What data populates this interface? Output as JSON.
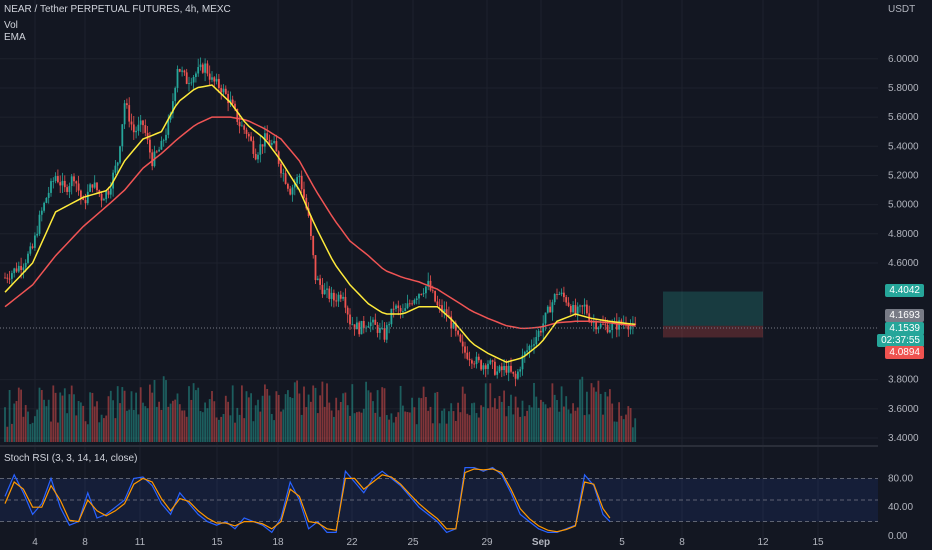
{
  "header": {
    "symbol_line": "NEAR / Tether PERPETUAL FUTURES, 4h, MEXC",
    "vol_label": "Vol",
    "ema_label": "EMA",
    "currency": "USDT"
  },
  "stoch": {
    "label": "Stoch RSI (3, 3, 14, 14, close)",
    "yticks": [
      "80.00",
      "40.00",
      "0.00"
    ]
  },
  "price_tags": {
    "take_profit": "4.4042",
    "gray": "4.1693",
    "last": "4.1539",
    "countdown": "02:37:55",
    "stop_loss": "4.0894"
  },
  "colors": {
    "background": "#131722",
    "up": "#26a69a",
    "down": "#ef5350",
    "ema_fast": "#ffeb3b",
    "ema_slow": "#f05454",
    "stoch_k": "#2962ff",
    "stoch_d": "#ff9800"
  },
  "chart_data": {
    "type": "candlestick",
    "y_axis": {
      "ticks": [
        "6.0000",
        "5.8000",
        "5.6000",
        "5.4000",
        "5.2000",
        "5.0000",
        "4.8000",
        "4.6000",
        "3.8000",
        "3.6000",
        "3.4000"
      ],
      "ylim": [
        3.4,
        6.25
      ]
    },
    "x_axis": {
      "ticks": [
        "4",
        "8",
        "11",
        "15",
        "18",
        "22",
        "25",
        "29",
        "Sep",
        "5",
        "8",
        "12",
        "15"
      ]
    },
    "last_price": 4.1539,
    "position": {
      "take_profit": 4.4042,
      "entry": 4.1693,
      "stop_loss": 4.0894
    },
    "close_path": [
      [
        0,
        4.5
      ],
      [
        4,
        4.55
      ],
      [
        8,
        4.6
      ],
      [
        12,
        4.7
      ],
      [
        15,
        4.9
      ],
      [
        18,
        5.05
      ],
      [
        22,
        5.2
      ],
      [
        26,
        5.1
      ],
      [
        30,
        5.2
      ],
      [
        34,
        5.0
      ],
      [
        38,
        5.15
      ],
      [
        42,
        5.05
      ],
      [
        45,
        5.1
      ],
      [
        49,
        5.3
      ],
      [
        52,
        5.7
      ],
      [
        56,
        5.5
      ],
      [
        60,
        5.55
      ],
      [
        64,
        5.3
      ],
      [
        68,
        5.4
      ],
      [
        72,
        5.6
      ],
      [
        75,
        5.95
      ],
      [
        79,
        5.85
      ],
      [
        83,
        5.9
      ],
      [
        87,
        5.95
      ],
      [
        90,
        5.85
      ],
      [
        94,
        5.8
      ],
      [
        98,
        5.7
      ],
      [
        102,
        5.55
      ],
      [
        105,
        5.5
      ],
      [
        109,
        5.35
      ],
      [
        113,
        5.45
      ],
      [
        117,
        5.4
      ],
      [
        120,
        5.25
      ],
      [
        124,
        5.1
      ],
      [
        128,
        5.2
      ],
      [
        132,
        4.9
      ],
      [
        135,
        4.5
      ],
      [
        139,
        4.4
      ],
      [
        143,
        4.35
      ],
      [
        147,
        4.4
      ],
      [
        150,
        4.2
      ],
      [
        154,
        4.15
      ],
      [
        158,
        4.2
      ],
      [
        162,
        4.15
      ],
      [
        165,
        4.1
      ],
      [
        169,
        4.3
      ],
      [
        173,
        4.25
      ],
      [
        177,
        4.35
      ],
      [
        180,
        4.4
      ],
      [
        184,
        4.45
      ],
      [
        188,
        4.3
      ],
      [
        192,
        4.25
      ],
      [
        195,
        4.15
      ],
      [
        199,
        4.0
      ],
      [
        203,
        3.95
      ],
      [
        207,
        3.9
      ],
      [
        210,
        3.92
      ],
      [
        214,
        3.85
      ],
      [
        218,
        3.88
      ],
      [
        222,
        3.8
      ],
      [
        225,
        3.95
      ],
      [
        229,
        4.05
      ],
      [
        233,
        4.15
      ],
      [
        237,
        4.3
      ],
      [
        240,
        4.4
      ],
      [
        244,
        4.35
      ],
      [
        248,
        4.25
      ],
      [
        252,
        4.3
      ],
      [
        255,
        4.2
      ],
      [
        259,
        4.17
      ],
      [
        263,
        4.16
      ],
      [
        267,
        4.18
      ],
      [
        270,
        4.2
      ],
      [
        273,
        4.15
      ]
    ],
    "ema_fast_path": [
      [
        0,
        4.4
      ],
      [
        12,
        4.6
      ],
      [
        22,
        4.95
      ],
      [
        34,
        5.05
      ],
      [
        45,
        5.1
      ],
      [
        52,
        5.3
      ],
      [
        60,
        5.45
      ],
      [
        68,
        5.5
      ],
      [
        75,
        5.7
      ],
      [
        83,
        5.8
      ],
      [
        90,
        5.82
      ],
      [
        98,
        5.7
      ],
      [
        105,
        5.55
      ],
      [
        113,
        5.45
      ],
      [
        120,
        5.3
      ],
      [
        128,
        5.1
      ],
      [
        135,
        4.85
      ],
      [
        143,
        4.6
      ],
      [
        150,
        4.45
      ],
      [
        158,
        4.32
      ],
      [
        165,
        4.25
      ],
      [
        173,
        4.25
      ],
      [
        180,
        4.3
      ],
      [
        188,
        4.3
      ],
      [
        195,
        4.2
      ],
      [
        203,
        4.05
      ],
      [
        210,
        3.98
      ],
      [
        218,
        3.92
      ],
      [
        225,
        3.95
      ],
      [
        233,
        4.05
      ],
      [
        240,
        4.2
      ],
      [
        248,
        4.25
      ],
      [
        255,
        4.22
      ],
      [
        263,
        4.2
      ],
      [
        273,
        4.18
      ]
    ],
    "ema_slow_path": [
      [
        0,
        4.3
      ],
      [
        12,
        4.45
      ],
      [
        22,
        4.65
      ],
      [
        34,
        4.85
      ],
      [
        45,
        5.0
      ],
      [
        52,
        5.1
      ],
      [
        60,
        5.25
      ],
      [
        68,
        5.35
      ],
      [
        75,
        5.45
      ],
      [
        83,
        5.55
      ],
      [
        90,
        5.6
      ],
      [
        98,
        5.6
      ],
      [
        105,
        5.58
      ],
      [
        113,
        5.52
      ],
      [
        120,
        5.45
      ],
      [
        128,
        5.3
      ],
      [
        135,
        5.1
      ],
      [
        143,
        4.9
      ],
      [
        150,
        4.75
      ],
      [
        158,
        4.65
      ],
      [
        165,
        4.55
      ],
      [
        173,
        4.5
      ],
      [
        180,
        4.47
      ],
      [
        188,
        4.42
      ],
      [
        195,
        4.35
      ],
      [
        203,
        4.27
      ],
      [
        210,
        4.22
      ],
      [
        218,
        4.17
      ],
      [
        225,
        4.15
      ],
      [
        233,
        4.16
      ],
      [
        240,
        4.19
      ],
      [
        248,
        4.2
      ],
      [
        255,
        4.2
      ],
      [
        263,
        4.19
      ],
      [
        273,
        4.17
      ]
    ],
    "stoch_k_path": [
      [
        0,
        55
      ],
      [
        4,
        85
      ],
      [
        8,
        60
      ],
      [
        12,
        30
      ],
      [
        16,
        45
      ],
      [
        20,
        80
      ],
      [
        24,
        40
      ],
      [
        28,
        15
      ],
      [
        32,
        20
      ],
      [
        36,
        60
      ],
      [
        40,
        25
      ],
      [
        44,
        30
      ],
      [
        48,
        40
      ],
      [
        52,
        50
      ],
      [
        56,
        80
      ],
      [
        60,
        82
      ],
      [
        64,
        70
      ],
      [
        68,
        45
      ],
      [
        72,
        30
      ],
      [
        76,
        60
      ],
      [
        80,
        45
      ],
      [
        84,
        30
      ],
      [
        88,
        20
      ],
      [
        92,
        15
      ],
      [
        96,
        20
      ],
      [
        100,
        10
      ],
      [
        104,
        25
      ],
      [
        108,
        20
      ],
      [
        112,
        15
      ],
      [
        116,
        5
      ],
      [
        120,
        25
      ],
      [
        124,
        75
      ],
      [
        128,
        50
      ],
      [
        132,
        10
      ],
      [
        136,
        20
      ],
      [
        140,
        5
      ],
      [
        144,
        5
      ],
      [
        148,
        90
      ],
      [
        152,
        75
      ],
      [
        156,
        60
      ],
      [
        160,
        80
      ],
      [
        164,
        90
      ],
      [
        168,
        80
      ],
      [
        172,
        70
      ],
      [
        176,
        55
      ],
      [
        180,
        40
      ],
      [
        184,
        30
      ],
      [
        188,
        20
      ],
      [
        192,
        5
      ],
      [
        196,
        10
      ],
      [
        200,
        95
      ],
      [
        204,
        95
      ],
      [
        208,
        90
      ],
      [
        212,
        95
      ],
      [
        216,
        85
      ],
      [
        220,
        60
      ],
      [
        224,
        30
      ],
      [
        228,
        20
      ],
      [
        232,
        10
      ],
      [
        236,
        5
      ],
      [
        240,
        5
      ],
      [
        244,
        10
      ],
      [
        248,
        15
      ],
      [
        252,
        85
      ],
      [
        256,
        70
      ],
      [
        260,
        30
      ],
      [
        263,
        20
      ]
    ],
    "stoch_d_path": [
      [
        0,
        45
      ],
      [
        4,
        75
      ],
      [
        8,
        65
      ],
      [
        12,
        40
      ],
      [
        16,
        40
      ],
      [
        20,
        70
      ],
      [
        24,
        50
      ],
      [
        28,
        22
      ],
      [
        32,
        20
      ],
      [
        36,
        50
      ],
      [
        40,
        35
      ],
      [
        44,
        28
      ],
      [
        48,
        35
      ],
      [
        52,
        45
      ],
      [
        56,
        72
      ],
      [
        60,
        80
      ],
      [
        64,
        75
      ],
      [
        68,
        52
      ],
      [
        72,
        35
      ],
      [
        76,
        52
      ],
      [
        80,
        48
      ],
      [
        84,
        35
      ],
      [
        88,
        25
      ],
      [
        92,
        18
      ],
      [
        96,
        18
      ],
      [
        100,
        14
      ],
      [
        104,
        20
      ],
      [
        108,
        20
      ],
      [
        112,
        17
      ],
      [
        116,
        10
      ],
      [
        120,
        20
      ],
      [
        124,
        65
      ],
      [
        128,
        55
      ],
      [
        132,
        20
      ],
      [
        136,
        18
      ],
      [
        140,
        10
      ],
      [
        144,
        8
      ],
      [
        148,
        80
      ],
      [
        152,
        80
      ],
      [
        156,
        65
      ],
      [
        160,
        75
      ],
      [
        164,
        85
      ],
      [
        168,
        82
      ],
      [
        172,
        72
      ],
      [
        176,
        58
      ],
      [
        180,
        45
      ],
      [
        184,
        34
      ],
      [
        188,
        24
      ],
      [
        192,
        10
      ],
      [
        196,
        10
      ],
      [
        200,
        88
      ],
      [
        204,
        93
      ],
      [
        208,
        92
      ],
      [
        212,
        93
      ],
      [
        216,
        88
      ],
      [
        220,
        65
      ],
      [
        224,
        38
      ],
      [
        228,
        24
      ],
      [
        232,
        14
      ],
      [
        236,
        8
      ],
      [
        240,
        6
      ],
      [
        244,
        9
      ],
      [
        248,
        14
      ],
      [
        252,
        75
      ],
      [
        256,
        72
      ],
      [
        260,
        38
      ],
      [
        263,
        25
      ]
    ],
    "volume_profile": [
      [
        0,
        0.3
      ],
      [
        20,
        0.4
      ],
      [
        40,
        0.35
      ],
      [
        60,
        0.5
      ],
      [
        70,
        0.7
      ],
      [
        80,
        0.45
      ],
      [
        100,
        0.4
      ],
      [
        120,
        0.45
      ],
      [
        140,
        0.5
      ],
      [
        160,
        0.45
      ],
      [
        180,
        0.35
      ],
      [
        200,
        0.4
      ],
      [
        220,
        0.4
      ],
      [
        240,
        0.5
      ],
      [
        255,
        0.55
      ],
      [
        273,
        0.3
      ]
    ]
  }
}
